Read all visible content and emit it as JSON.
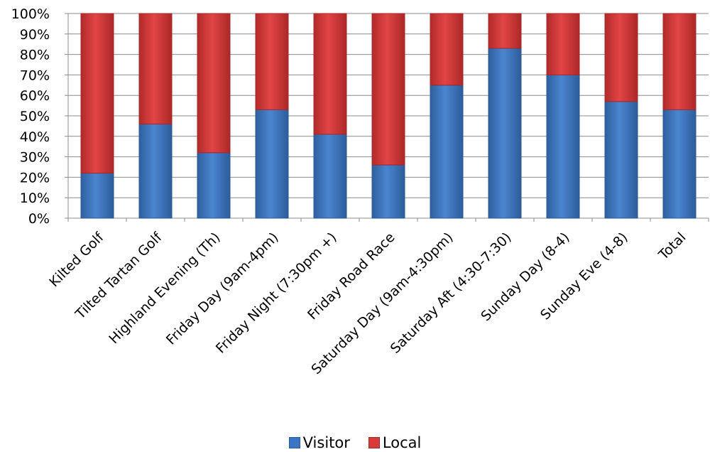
{
  "chart_data": {
    "type": "bar",
    "stacked": true,
    "percent": true,
    "categories": [
      "Kilted Golf",
      "Tilted Tartan Golf",
      "Highland Evening (Th)",
      "Friday Day (9am-4pm)",
      "Friday Night (7:30pm +)",
      "Friday Road Race",
      "Saturday Day (9am-4:30pm)",
      "Saturday Aft (4:30-7:30)",
      "Sunday Day (8-4)",
      "Sunday Eve (4-8)",
      "Total"
    ],
    "series": [
      {
        "name": "Visitor",
        "color": "#3a75c4",
        "values": [
          22,
          46,
          32,
          53,
          41,
          26,
          65,
          83,
          70,
          57,
          53
        ]
      },
      {
        "name": "Local",
        "color": "#d63a3a",
        "values": [
          78,
          54,
          68,
          47,
          59,
          74,
          35,
          17,
          30,
          43,
          47
        ]
      }
    ],
    "ylim": [
      0,
      100
    ],
    "yticks": [
      "0%",
      "10%",
      "20%",
      "30%",
      "40%",
      "50%",
      "60%",
      "70%",
      "80%",
      "90%",
      "100%"
    ],
    "grid": true,
    "legend_position": "bottom"
  }
}
